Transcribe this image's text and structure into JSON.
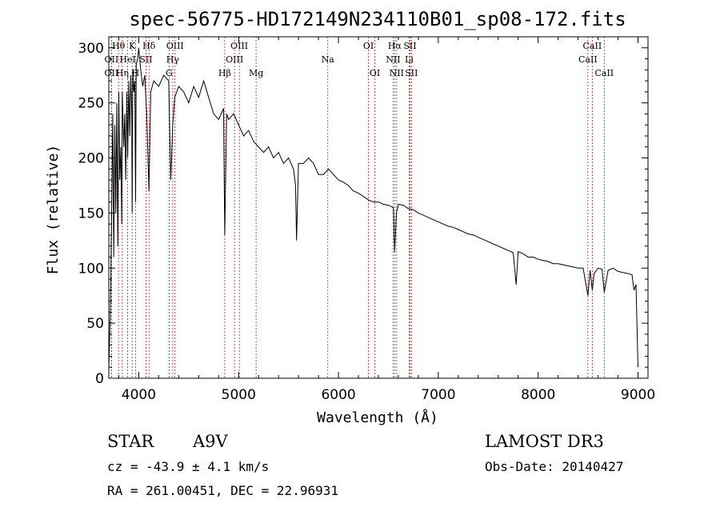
{
  "chart_data": {
    "type": "line",
    "title": "spec-56775-HD172149N234110B01_sp08-172.fits",
    "xlabel": "Wavelength (Å)",
    "ylabel": "Flux (relative)",
    "xlim": [
      3700,
      9100
    ],
    "ylim": [
      0,
      310
    ],
    "xticks": [
      4000,
      5000,
      6000,
      7000,
      8000,
      9000
    ],
    "yticks": [
      0,
      50,
      100,
      150,
      200,
      250,
      300
    ],
    "grid": false,
    "series": [
      {
        "name": "spectrum",
        "x": [
          3700,
          3715,
          3720,
          3730,
          3740,
          3750,
          3760,
          3770,
          3780,
          3790,
          3800,
          3810,
          3820,
          3830,
          3835,
          3850,
          3860,
          3870,
          3880,
          3889,
          3900,
          3910,
          3920,
          3930,
          3934,
          3940,
          3950,
          3960,
          3968,
          3975,
          3990,
          4000,
          4020,
          4040,
          4060,
          4080,
          4102,
          4120,
          4150,
          4200,
          4250,
          4300,
          4320,
          4340,
          4360,
          4400,
          4450,
          4500,
          4550,
          4600,
          4650,
          4700,
          4750,
          4800,
          4850,
          4861,
          4880,
          4900,
          4950,
          5000,
          5050,
          5100,
          5150,
          5200,
          5250,
          5300,
          5350,
          5400,
          5450,
          5500,
          5550,
          5570,
          5580,
          5600,
          5650,
          5700,
          5750,
          5800,
          5850,
          5900,
          5950,
          6000,
          6050,
          6100,
          6150,
          6200,
          6250,
          6300,
          6350,
          6400,
          6450,
          6500,
          6550,
          6563,
          6580,
          6600,
          6650,
          6700,
          6750,
          6800,
          6850,
          6900,
          6950,
          7000,
          7050,
          7100,
          7150,
          7200,
          7250,
          7300,
          7350,
          7400,
          7450,
          7500,
          7550,
          7600,
          7650,
          7700,
          7750,
          7780,
          7800,
          7850,
          7900,
          7950,
          8000,
          8050,
          8100,
          8150,
          8200,
          8250,
          8300,
          8350,
          8400,
          8450,
          8498,
          8520,
          8542,
          8560,
          8600,
          8640,
          8662,
          8700,
          8750,
          8800,
          8850,
          8900,
          8940,
          8960,
          8980,
          9000
        ],
        "y": [
          10,
          60,
          90,
          160,
          240,
          110,
          230,
          150,
          250,
          120,
          260,
          180,
          210,
          140,
          260,
          210,
          240,
          180,
          260,
          200,
          270,
          220,
          275,
          240,
          150,
          280,
          260,
          270,
          160,
          285,
          290,
          300,
          280,
          265,
          275,
          240,
          170,
          260,
          270,
          265,
          275,
          270,
          180,
          230,
          255,
          265,
          260,
          250,
          265,
          255,
          270,
          255,
          240,
          235,
          245,
          130,
          240,
          235,
          240,
          230,
          220,
          225,
          215,
          210,
          205,
          210,
          200,
          205,
          195,
          200,
          190,
          175,
          125,
          195,
          195,
          200,
          195,
          185,
          185,
          190,
          185,
          180,
          178,
          175,
          170,
          168,
          165,
          162,
          160,
          160,
          158,
          157,
          155,
          115,
          150,
          158,
          157,
          154,
          153,
          150,
          148,
          146,
          144,
          142,
          140,
          138,
          137,
          135,
          133,
          131,
          130,
          128,
          126,
          124,
          122,
          120,
          118,
          116,
          114,
          85,
          115,
          113,
          110,
          110,
          108,
          107,
          106,
          104,
          104,
          103,
          102,
          101,
          100,
          100,
          75,
          98,
          80,
          95,
          100,
          99,
          78,
          98,
          100,
          97,
          96,
          95,
          94,
          80,
          85,
          10
        ]
      }
    ],
    "spectral_lines": [
      {
        "label": "Hθ",
        "wavelength": 3797,
        "row": 1
      },
      {
        "label": "OII",
        "wavelength": 3727,
        "row": 2
      },
      {
        "label": "OII",
        "wavelength": 3727,
        "row": 3
      },
      {
        "label": "HeI",
        "wavelength": 3889,
        "row": 2
      },
      {
        "label": "Hη",
        "wavelength": 3835,
        "row": 3
      },
      {
        "label": "K",
        "wavelength": 3934,
        "row": 1
      },
      {
        "label": "SII",
        "wavelength": 4072,
        "row": 2
      },
      {
        "label": "H",
        "wavelength": 3968,
        "row": 3
      },
      {
        "label": "Hδ",
        "wavelength": 4102,
        "row": 1
      },
      {
        "label": "OIII",
        "wavelength": 4363,
        "row": 1
      },
      {
        "label": "Hγ",
        "wavelength": 4340,
        "row": 2
      },
      {
        "label": "G",
        "wavelength": 4304,
        "row": 3
      },
      {
        "label": "OIII",
        "wavelength": 5007,
        "row": 1
      },
      {
        "label": "OIII",
        "wavelength": 4959,
        "row": 2
      },
      {
        "label": "Hβ",
        "wavelength": 4861,
        "row": 3
      },
      {
        "label": "Mg",
        "wavelength": 5175,
        "row": 3
      },
      {
        "label": "Na",
        "wavelength": 5893,
        "row": 2
      },
      {
        "label": "OI",
        "wavelength": 6300,
        "row": 1
      },
      {
        "label": "OI",
        "wavelength": 6364,
        "row": 3
      },
      {
        "label": "Hα",
        "wavelength": 6563,
        "row": 1
      },
      {
        "label": "NII",
        "wavelength": 6548,
        "row": 2
      },
      {
        "label": "NII",
        "wavelength": 6583,
        "row": 3
      },
      {
        "label": "SII",
        "wavelength": 6716,
        "row": 1
      },
      {
        "label": "Li",
        "wavelength": 6708,
        "row": 2
      },
      {
        "label": "SII",
        "wavelength": 6731,
        "row": 3
      },
      {
        "label": "CaII",
        "wavelength": 8542,
        "row": 1
      },
      {
        "label": "CaII",
        "wavelength": 8498,
        "row": 2
      },
      {
        "label": "CaII",
        "wavelength": 8662,
        "row": 3
      }
    ]
  },
  "info": {
    "object_class": "STAR",
    "subclass": "A9V",
    "survey": "LAMOST DR3",
    "cz": "cz = -43.9 ± 4.1 km/s",
    "obs_date": "Obs-Date: 20140427",
    "coords": "RA = 261.00451, DEC =  22.96931"
  },
  "colors": {
    "spectrum": "#000000",
    "line_markers": "#b22222"
  }
}
